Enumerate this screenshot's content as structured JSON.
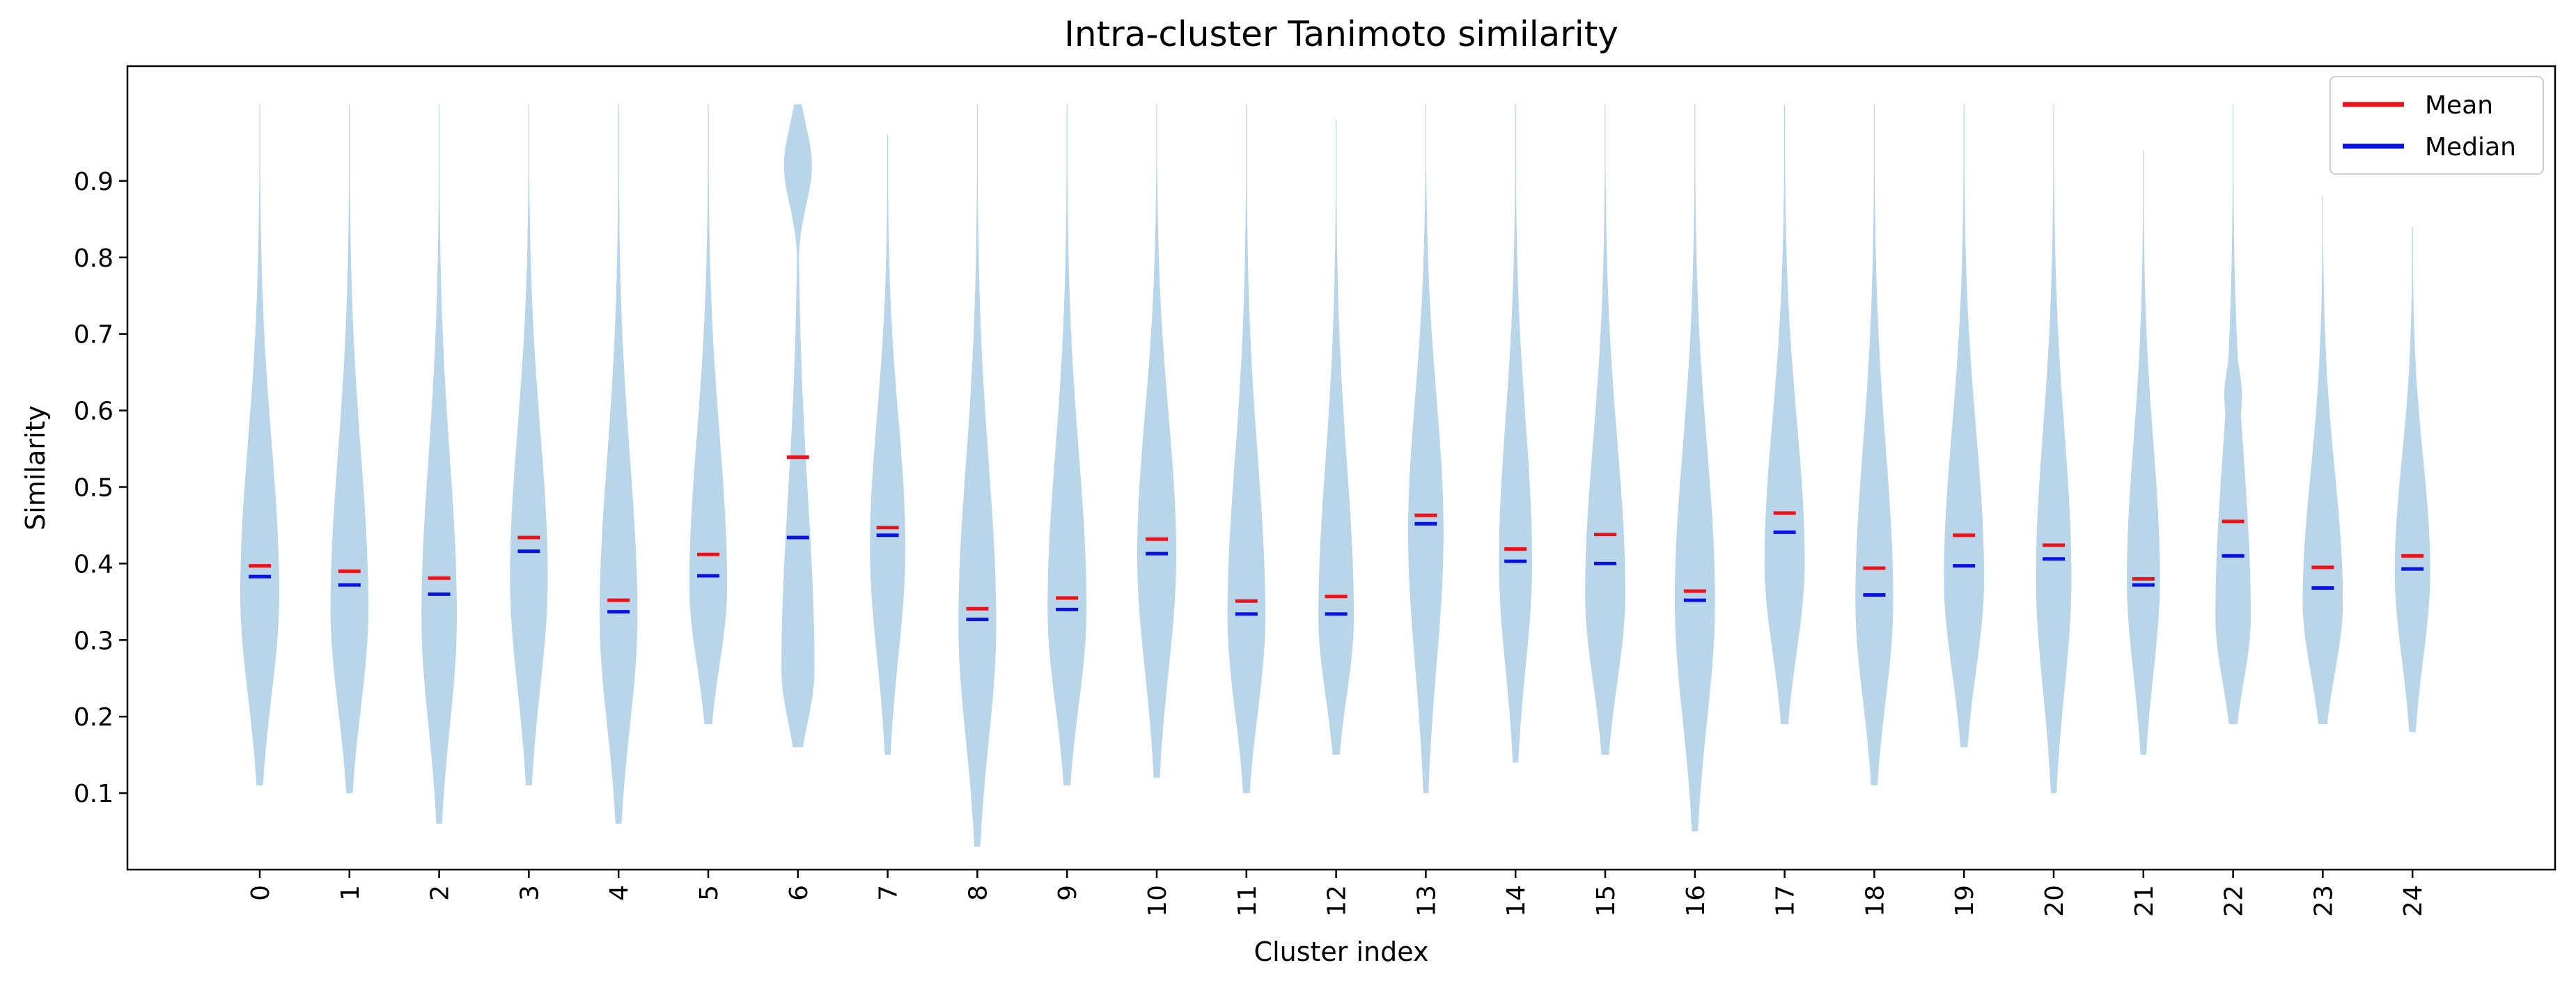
{
  "chart_data": {
    "type": "violin",
    "title": "Intra-cluster Tanimoto similarity",
    "xlabel": "Cluster index",
    "ylabel": "Similarity",
    "categories": [
      "0",
      "1",
      "2",
      "3",
      "4",
      "5",
      "6",
      "7",
      "8",
      "9",
      "10",
      "11",
      "12",
      "13",
      "14",
      "15",
      "16",
      "17",
      "18",
      "19",
      "20",
      "21",
      "22",
      "23",
      "24"
    ],
    "ylim": [
      0.0,
      1.05
    ],
    "yticks": [
      "0.1",
      "0.2",
      "0.3",
      "0.4",
      "0.5",
      "0.6",
      "0.7",
      "0.8",
      "0.9"
    ],
    "grid": false,
    "legend_position": "top-right",
    "series": [
      {
        "name": "Mean",
        "color": "#e8141c",
        "values": [
          0.397,
          0.39,
          0.381,
          0.434,
          0.352,
          0.412,
          0.539,
          0.447,
          0.341,
          0.355,
          0.432,
          0.351,
          0.357,
          0.463,
          0.419,
          0.438,
          0.364,
          0.466,
          0.394,
          0.437,
          0.424,
          0.38,
          0.455,
          0.395,
          0.41
        ]
      },
      {
        "name": "Median",
        "color": "#0a14e0",
        "values": [
          0.383,
          0.372,
          0.36,
          0.416,
          0.337,
          0.384,
          0.434,
          0.437,
          0.327,
          0.34,
          0.413,
          0.334,
          0.334,
          0.452,
          0.403,
          0.4,
          0.352,
          0.441,
          0.359,
          0.397,
          0.406,
          0.372,
          0.41,
          0.368,
          0.393
        ]
      }
    ],
    "violin_color": "#b9d5ea",
    "distribution_ranges": [
      [
        0.11,
        1.0
      ],
      [
        0.1,
        1.0
      ],
      [
        0.06,
        1.0
      ],
      [
        0.11,
        1.0
      ],
      [
        0.06,
        1.0
      ],
      [
        0.19,
        1.0
      ],
      [
        0.16,
        1.0
      ],
      [
        0.15,
        0.96
      ],
      [
        0.03,
        1.0
      ],
      [
        0.11,
        1.0
      ],
      [
        0.12,
        1.0
      ],
      [
        0.1,
        1.0
      ],
      [
        0.15,
        0.98
      ],
      [
        0.1,
        1.0
      ],
      [
        0.14,
        1.0
      ],
      [
        0.15,
        1.0
      ],
      [
        0.05,
        1.0
      ],
      [
        0.19,
        1.0
      ],
      [
        0.11,
        1.0
      ],
      [
        0.16,
        1.0
      ],
      [
        0.1,
        1.0
      ],
      [
        0.15,
        0.94
      ],
      [
        0.19,
        1.0
      ],
      [
        0.19,
        0.88
      ],
      [
        0.18,
        0.84
      ]
    ],
    "distribution_modes": [
      0.36,
      0.34,
      0.33,
      0.38,
      0.33,
      0.37,
      0.26,
      0.42,
      0.32,
      0.34,
      0.41,
      0.33,
      0.33,
      0.44,
      0.4,
      0.36,
      0.35,
      0.4,
      0.35,
      0.38,
      0.38,
      0.38,
      0.33,
      0.35,
      0.39
    ],
    "distribution_peak_widths": [
      0.33,
      0.32,
      0.3,
      0.32,
      0.32,
      0.32,
      0.28,
      0.3,
      0.32,
      0.33,
      0.33,
      0.32,
      0.3,
      0.3,
      0.28,
      0.34,
      0.34,
      0.34,
      0.32,
      0.34,
      0.3,
      0.28,
      0.3,
      0.34,
      0.3
    ]
  }
}
